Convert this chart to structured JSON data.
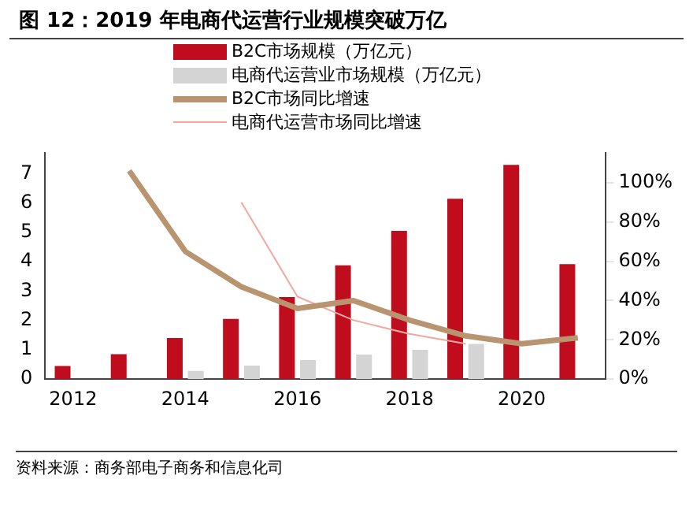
{
  "chart_data": {
    "type": "bar",
    "title": "图 12：2019 年电商代运营行业规模突破万亿",
    "categories": [
      "2012",
      null,
      "2014",
      null,
      "2016",
      null,
      "2018",
      null,
      "2020",
      null
    ],
    "series": [
      {
        "name": "B2C市场规模（万亿元）",
        "color": "#c00d1e",
        "values": [
          0.45,
          0.85,
          1.4,
          2.05,
          2.8,
          3.88,
          5.05,
          6.15,
          7.3,
          3.92
        ]
      },
      {
        "name": "电商代运营业市场规模（万亿元）",
        "color": "#d4d4d4",
        "values": [
          null,
          null,
          0.28,
          0.46,
          0.65,
          0.84,
          1.0,
          1.2,
          null,
          null
        ]
      },
      {
        "name": "B2C市场同比增速",
        "type": "line",
        "axis": "y2",
        "color": "#b99470",
        "values": [
          null,
          106,
          65,
          47,
          36,
          40,
          30,
          22,
          18,
          21
        ]
      },
      {
        "name": "电商代运营市场同比增速",
        "type": "line",
        "axis": "y2",
        "color": "#f0a8a0",
        "values": [
          null,
          null,
          null,
          90,
          42,
          30,
          23,
          18,
          null,
          null
        ]
      }
    ],
    "ylim": [
      0,
      7.7
    ],
    "yticks": [
      0,
      1,
      2,
      3,
      4,
      5,
      6,
      7
    ],
    "y2lim": [
      0,
      115
    ],
    "y2ticks": [
      {
        "value": 0,
        "label": "0%"
      },
      {
        "value": 20,
        "label": "20%"
      },
      {
        "value": 40,
        "label": "40%"
      },
      {
        "value": 60,
        "label": "60%"
      },
      {
        "value": 80,
        "label": "80%"
      },
      {
        "value": 100,
        "label": "100%"
      }
    ],
    "grid": false,
    "legend": "top",
    "marker": "none",
    "annotations": [
      "资料来源：商务部电子商务和信息化司"
    ]
  }
}
